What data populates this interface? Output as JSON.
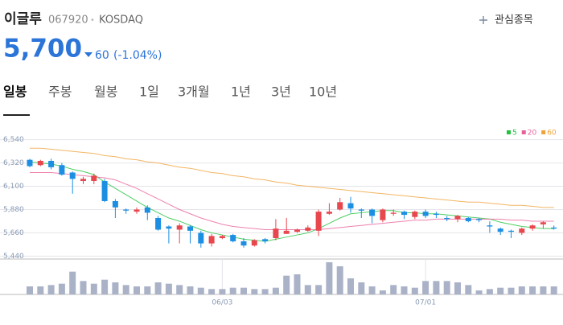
{
  "header": {
    "name": "이글루",
    "code": "067920",
    "dot": "•",
    "market": "KOSDAQ",
    "watch": "관심종목",
    "price": "5,700",
    "change": "60",
    "change_pct": "(-1.04%)"
  },
  "tabs": [
    "일봉",
    "주봉",
    "월봉",
    "1일",
    "3개월",
    "1년",
    "3년",
    "10년"
  ],
  "chart_data": {
    "type": "candlestick",
    "categories": [
      null,
      null,
      null,
      null,
      null,
      null,
      null,
      null,
      null,
      null,
      null,
      null,
      null,
      null,
      null,
      null,
      null,
      null,
      "06/03",
      null,
      null,
      null,
      null,
      null,
      null,
      null,
      null,
      null,
      null,
      null,
      null,
      null,
      null,
      null,
      null,
      null,
      null,
      "07/01",
      null,
      null,
      null,
      null,
      null,
      null,
      null,
      null,
      null,
      null,
      null,
      null
    ],
    "open": [
      6350,
      6300,
      6340,
      6300,
      6230,
      6150,
      6150,
      6150,
      5960,
      5880,
      5860,
      5900,
      5800,
      5720,
      5690,
      5720,
      5660,
      5560,
      5610,
      5640,
      5580,
      5540,
      5600,
      5610,
      5650,
      5670,
      5680,
      5680,
      5840,
      5880,
      5940,
      5880,
      5880,
      5780,
      5840,
      5860,
      5810,
      5860,
      5840,
      5800,
      5790,
      5800,
      5790,
      5730,
      5700,
      5680,
      5660,
      5700,
      5740,
      5710
    ],
    "high": [
      6360,
      6350,
      6360,
      6320,
      6240,
      6190,
      6220,
      6170,
      5980,
      5890,
      5900,
      5920,
      5820,
      5730,
      5750,
      5730,
      5680,
      5650,
      5640,
      5650,
      5610,
      5600,
      5610,
      5790,
      5800,
      5700,
      5730,
      5880,
      5940,
      5990,
      6000,
      5890,
      5890,
      5890,
      5880,
      5870,
      5870,
      5880,
      5860,
      5820,
      5830,
      5810,
      5800,
      5770,
      5710,
      5690,
      5710,
      5740,
      5770,
      5730
    ],
    "low": [
      6280,
      6290,
      6260,
      6200,
      6030,
      6120,
      6120,
      5950,
      5800,
      5840,
      5840,
      5780,
      5680,
      5560,
      5560,
      5560,
      5520,
      5530,
      5600,
      5570,
      5520,
      5530,
      5560,
      5590,
      5650,
      5660,
      5670,
      5630,
      5830,
      5870,
      5850,
      5800,
      5750,
      5760,
      5820,
      5790,
      5790,
      5800,
      5800,
      5770,
      5760,
      5760,
      5760,
      5660,
      5640,
      5610,
      5640,
      5680,
      5700,
      5690
    ],
    "close": [
      6290,
      6340,
      6280,
      6210,
      6170,
      6170,
      6200,
      5960,
      5900,
      5870,
      5880,
      5850,
      5690,
      5700,
      5730,
      5680,
      5560,
      5630,
      5630,
      5580,
      5540,
      5590,
      5580,
      5700,
      5680,
      5690,
      5710,
      5860,
      5860,
      5950,
      5890,
      5870,
      5820,
      5880,
      5850,
      5830,
      5860,
      5820,
      5830,
      5790,
      5820,
      5770,
      5780,
      5720,
      5670,
      5670,
      5700,
      5730,
      5760,
      5700
    ],
    "volume": [
      6,
      6,
      7,
      8,
      17,
      10,
      8,
      11,
      9,
      7,
      6,
      6,
      9,
      8,
      7,
      6,
      5,
      4,
      4,
      5,
      5,
      4,
      4,
      5,
      14,
      15,
      7,
      7,
      24,
      21,
      12,
      9,
      6,
      3,
      7,
      6,
      5,
      10,
      10,
      10,
      9,
      7,
      3,
      4,
      5,
      5,
      6,
      6,
      6,
      6
    ],
    "series": [
      {
        "name": "5",
        "color": "#21c23d",
        "values": [
          6330,
          6320,
          6310,
          6290,
          6260,
          6240,
          6210,
          6140,
          6080,
          6020,
          5960,
          5900,
          5850,
          5800,
          5770,
          5730,
          5690,
          5660,
          5640,
          5620,
          5600,
          5590,
          5580,
          5600,
          5620,
          5640,
          5660,
          5700,
          5750,
          5800,
          5840,
          5850,
          5860,
          5870,
          5870,
          5850,
          5850,
          5840,
          5840,
          5830,
          5820,
          5810,
          5800,
          5790,
          5760,
          5740,
          5720,
          5710,
          5700,
          5700
        ]
      },
      {
        "name": "20",
        "color": "#e8619a",
        "values": [
          6230,
          6230,
          6230,
          6220,
          6210,
          6200,
          6190,
          6180,
          6160,
          6120,
          6080,
          6030,
          5980,
          5930,
          5880,
          5840,
          5800,
          5770,
          5740,
          5720,
          5710,
          5700,
          5690,
          5690,
          5690,
          5690,
          5690,
          5690,
          5700,
          5710,
          5720,
          5730,
          5740,
          5750,
          5760,
          5770,
          5780,
          5780,
          5790,
          5790,
          5790,
          5790,
          5790,
          5790,
          5790,
          5780,
          5780,
          5770,
          5770,
          5770
        ]
      },
      {
        "name": "60",
        "color": "#f0a33c",
        "values": [
          6460,
          6460,
          6450,
          6440,
          6430,
          6420,
          6410,
          6390,
          6380,
          6360,
          6350,
          6330,
          6320,
          6300,
          6280,
          6270,
          6250,
          6230,
          6220,
          6200,
          6190,
          6170,
          6160,
          6140,
          6130,
          6110,
          6100,
          6090,
          6080,
          6070,
          6060,
          6050,
          6040,
          6030,
          6020,
          6010,
          6000,
          5990,
          5980,
          5970,
          5960,
          5950,
          5950,
          5940,
          5930,
          5920,
          5920,
          5910,
          5900,
          5900
        ]
      }
    ],
    "up_color": "#e8474e",
    "down_color": "#1c8fe3",
    "ylim": [
      5420,
      6720
    ],
    "yticks": [
      {
        "value": 6540,
        "label": "6,540"
      },
      {
        "value": 6320,
        "label": "6,320"
      },
      {
        "value": 6100,
        "label": "6,100"
      },
      {
        "value": 5880,
        "label": "5,880"
      },
      {
        "value": 5660,
        "label": "5,660"
      },
      {
        "value": 5440,
        "label": "5,440"
      }
    ],
    "grid": true,
    "legend": "top-right"
  }
}
